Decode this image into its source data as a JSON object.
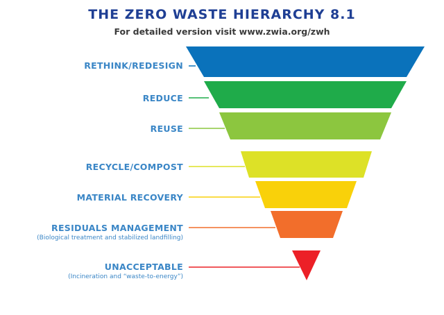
{
  "title": "THE ZERO WASTE HIERARCHY 8.1",
  "subtitle": "For detailed version visit www.zwia.org/zwh",
  "levels": [
    {
      "label": "RETHINK/REDESIGN",
      "note": "",
      "color": "#0a72bb"
    },
    {
      "label": "REDUCE",
      "note": "",
      "color": "#1fab4a"
    },
    {
      "label": "REUSE",
      "note": "",
      "color": "#8cc63f"
    },
    {
      "label": "RECYCLE/COMPOST",
      "note": "",
      "color": "#dde127"
    },
    {
      "label": "MATERIAL RECOVERY",
      "note": "",
      "color": "#f9d10a"
    },
    {
      "label": "RESIDUALS MANAGEMENT",
      "note": "(Biological treatment and stabilized landfilling)",
      "color": "#f26e2b"
    },
    {
      "label": "UNACCEPTABLE",
      "note": "(Incineration and “waste-to-energy”)",
      "color": "#ec2027"
    }
  ]
}
